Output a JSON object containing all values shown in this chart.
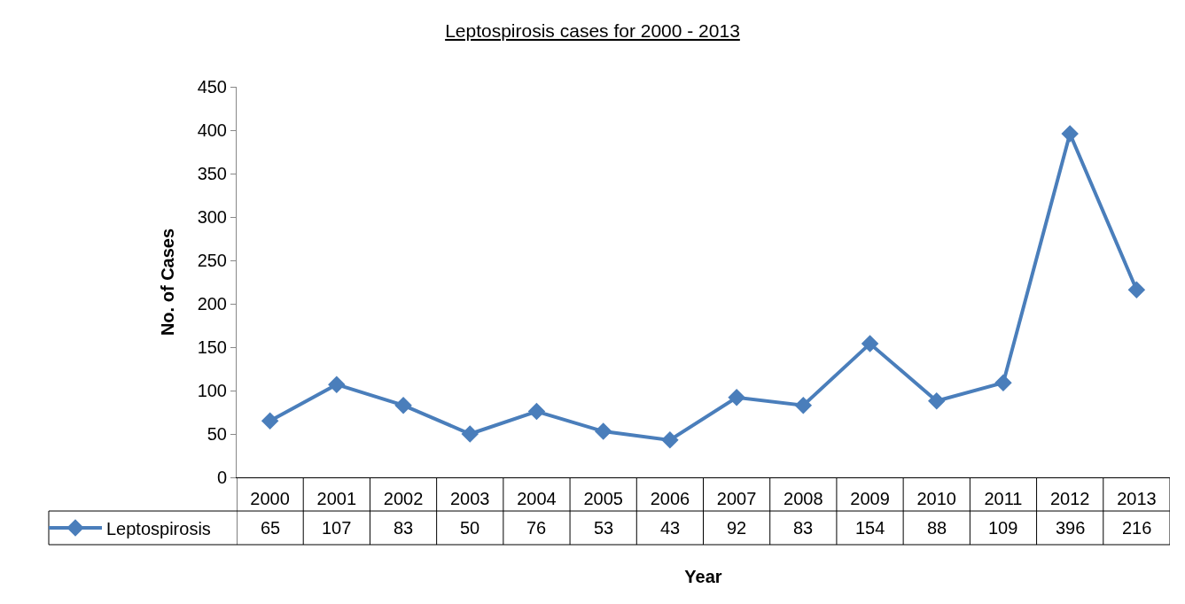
{
  "chart_data": {
    "type": "line",
    "title": "Leptospirosis cases for 2000 - 2013",
    "xlabel": "Year",
    "ylabel": "No. of Cases",
    "categories": [
      "2000",
      "2001",
      "2002",
      "2003",
      "2004",
      "2005",
      "2006",
      "2007",
      "2008",
      "2009",
      "2010",
      "2011",
      "2012",
      "2013"
    ],
    "series": [
      {
        "name": "Leptospirosis",
        "color": "#4a7ebb",
        "values": [
          65,
          107,
          83,
          50,
          76,
          53,
          43,
          92,
          83,
          154,
          88,
          109,
          396,
          216
        ]
      }
    ],
    "ylim": [
      0,
      450
    ],
    "yticks": [
      0,
      50,
      100,
      150,
      200,
      250,
      300,
      350,
      400,
      450
    ],
    "grid": false,
    "legend": "bottom left",
    "marker": "diamond",
    "line_style": "solid",
    "data_labels": true
  }
}
